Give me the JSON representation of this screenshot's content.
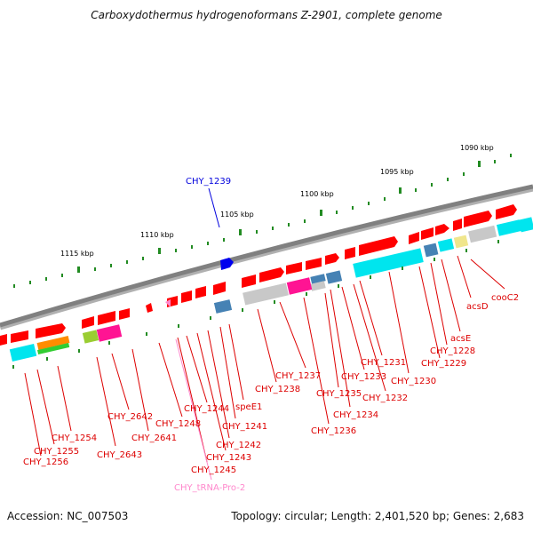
{
  "title": "Carboxydothermus hydrogenoformans Z-2901, complete genome",
  "footer": {
    "accession": "Accession: NC_007503",
    "topology": "Topology: circular; Length: 2,401,520 bp; Genes: 2,683"
  },
  "colors": {
    "gene_red": "#ff0000",
    "label_red": "#dd0000",
    "highlight_blue": "#0000dd",
    "trna_pink": "#ff88cc",
    "scale_green": "#228b22",
    "backbone_gray": "#808080",
    "cyan": "#00e5ee",
    "magenta": "#ff1493",
    "steelblue": "#4682b4",
    "lightgray": "#c8c8c8",
    "khaki": "#f0e68c",
    "orange": "#ff8c00",
    "lime": "#9acd32"
  },
  "scale_labels": [
    "1090 kbp",
    "1095 kbp",
    "1100 kbp",
    "1105 kbp",
    "1110 kbp",
    "1115 kbp"
  ],
  "highlight_gene": "CHY_1239",
  "gene_labels": [
    "cooC2",
    "acsD",
    "acsE",
    "CHY_1228",
    "CHY_1229",
    "CHY_1230",
    "CHY_1231",
    "CHY_1232",
    "CHY_1233",
    "CHY_1234",
    "CHY_1235",
    "CHY_1236",
    "CHY_1237",
    "CHY_1238",
    "speE1",
    "CHY_1241",
    "CHY_1242",
    "CHY_1243",
    "CHY_1244",
    "CHY_1245",
    "CHY_1248",
    "CHY_2641",
    "CHY_2642",
    "CHY_2643",
    "CHY_1254",
    "CHY_1255",
    "CHY_1256"
  ],
  "trna_label": "CHY_tRNA-Pro-2"
}
